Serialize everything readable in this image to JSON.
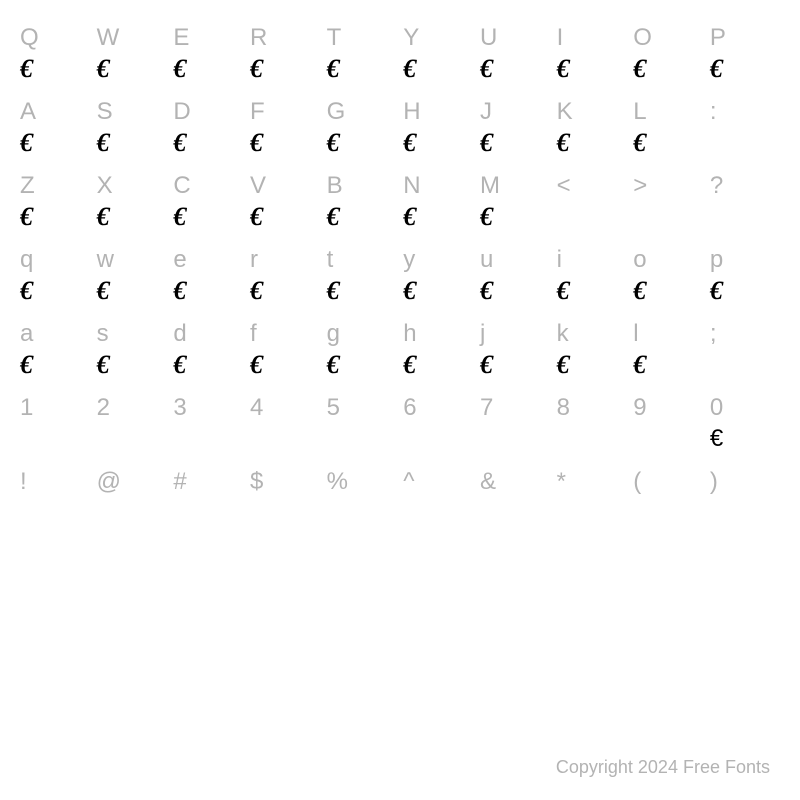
{
  "grid": {
    "key_color": "#b3b3b3",
    "glyph_color": "#000000",
    "background": "#ffffff",
    "key_fontsize": 24,
    "glyph_fontsize": 26,
    "rows": [
      {
        "keys": [
          "Q",
          "W",
          "E",
          "R",
          "T",
          "Y",
          "U",
          "I",
          "O",
          "P"
        ],
        "glyphs": [
          "€",
          "€",
          "€",
          "€",
          "€",
          "€",
          "€",
          "€",
          "€",
          "€"
        ]
      },
      {
        "keys": [
          "A",
          "S",
          "D",
          "F",
          "G",
          "H",
          "J",
          "K",
          "L",
          ":"
        ],
        "glyphs": [
          "€",
          "€",
          "€",
          "€",
          "€",
          "€",
          "€",
          "€",
          "€",
          ""
        ]
      },
      {
        "keys": [
          "Z",
          "X",
          "C",
          "V",
          "B",
          "N",
          "M",
          "<",
          ">",
          "?"
        ],
        "glyphs": [
          "€",
          "€",
          "€",
          "€",
          "€",
          "€",
          "€",
          "",
          "",
          ""
        ]
      },
      {
        "keys": [
          "q",
          "w",
          "e",
          "r",
          "t",
          "y",
          "u",
          "i",
          "o",
          "p"
        ],
        "glyphs": [
          "€",
          "€",
          "€",
          "€",
          "€",
          "€",
          "€",
          "€",
          "€",
          "€"
        ]
      },
      {
        "keys": [
          "a",
          "s",
          "d",
          "f",
          "g",
          "h",
          "j",
          "k",
          "l",
          ";"
        ],
        "glyphs": [
          "€",
          "€",
          "€",
          "€",
          "€",
          "€",
          "€",
          "€",
          "€",
          ""
        ]
      },
      {
        "keys": [
          "1",
          "2",
          "3",
          "4",
          "5",
          "6",
          "7",
          "8",
          "9",
          "0"
        ],
        "glyphs": [
          "",
          "",
          "",
          "",
          "",
          "",
          "",
          "",
          "",
          "€"
        ],
        "glyph_style": [
          "",
          "",
          "",
          "",
          "",
          "",
          "",
          "",
          "",
          "plain"
        ]
      },
      {
        "keys": [
          "!",
          "@",
          "#",
          "$",
          "%",
          "^",
          "&",
          "*",
          "(",
          ")"
        ],
        "glyphs": [
          "",
          "",
          "",
          "",
          "",
          "",
          "",
          "",
          "",
          ""
        ]
      }
    ]
  },
  "copyright": "Copyright 2024 Free Fonts"
}
